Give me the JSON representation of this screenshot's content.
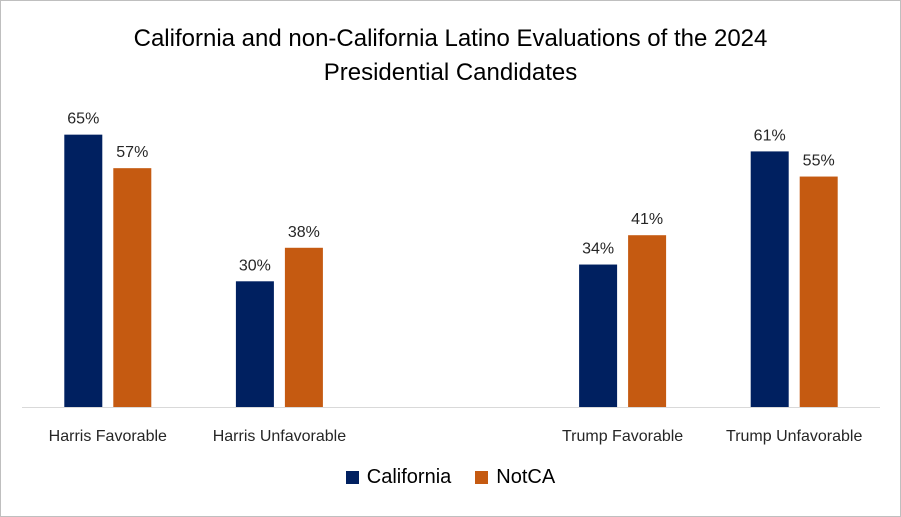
{
  "chart_data": {
    "type": "bar",
    "title_lines": [
      "California and non-California Latino Evaluations of the 2024",
      "Presidential Candidates"
    ],
    "categories": [
      "Harris Favorable",
      "Harris Unfavorable",
      "",
      "Trump Favorable",
      "Trump Unfavorable"
    ],
    "series": [
      {
        "name": "California",
        "color": "#002060",
        "values": [
          65,
          30,
          null,
          34,
          61
        ],
        "labels": [
          "65%",
          "30%",
          "",
          "34%",
          "61%"
        ]
      },
      {
        "name": "NotCA",
        "color": "#C55A11",
        "values": [
          57,
          38,
          null,
          41,
          55
        ],
        "labels": [
          "57%",
          "38%",
          "",
          "41%",
          "55%"
        ]
      }
    ],
    "ylim": [
      0,
      70
    ],
    "grid": false,
    "legend_position": "bottom"
  }
}
